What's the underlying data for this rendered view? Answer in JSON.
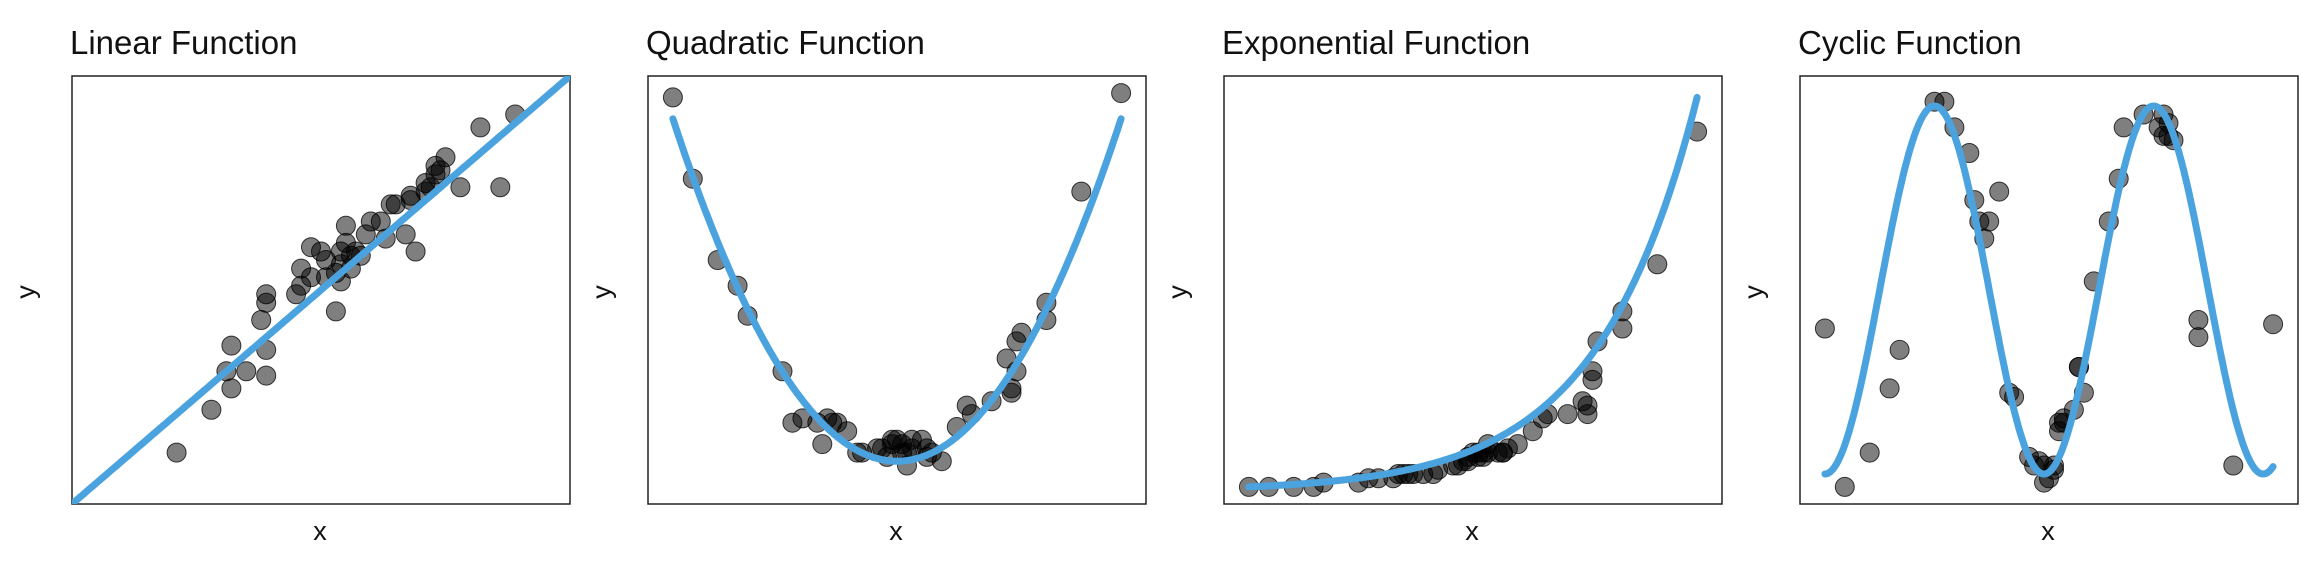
{
  "chart_data": [
    {
      "type": "scatter",
      "title": "Linear Function",
      "xlabel": "x",
      "ylabel": "y",
      "xlim": [
        0,
        1
      ],
      "ylim": [
        0,
        1
      ],
      "grid": false,
      "ticks": false,
      "colors": {
        "points": "#000000",
        "fit": "#4aa3df"
      },
      "points": {
        "x": [
          0.21,
          0.28,
          0.32,
          0.31,
          0.35,
          0.32,
          0.39,
          0.39,
          0.38,
          0.39,
          0.39,
          0.45,
          0.46,
          0.46,
          0.48,
          0.48,
          0.5,
          0.51,
          0.51,
          0.53,
          0.53,
          0.54,
          0.54,
          0.54,
          0.55,
          0.55,
          0.56,
          0.56,
          0.57,
          0.58,
          0.59,
          0.6,
          0.62,
          0.63,
          0.64,
          0.65,
          0.67,
          0.68,
          0.68,
          0.69,
          0.71,
          0.71,
          0.72,
          0.73,
          0.73,
          0.74,
          0.75,
          0.78,
          0.82,
          0.86,
          0.89
        ],
        "y": [
          0.12,
          0.22,
          0.27,
          0.31,
          0.31,
          0.37,
          0.3,
          0.36,
          0.43,
          0.47,
          0.49,
          0.49,
          0.51,
          0.55,
          0.53,
          0.6,
          0.59,
          0.57,
          0.53,
          0.54,
          0.45,
          0.52,
          0.56,
          0.59,
          0.61,
          0.65,
          0.55,
          0.58,
          0.59,
          0.58,
          0.63,
          0.66,
          0.66,
          0.62,
          0.7,
          0.7,
          0.63,
          0.71,
          0.72,
          0.59,
          0.73,
          0.75,
          0.74,
          0.77,
          0.79,
          0.78,
          0.81,
          0.74,
          0.88,
          0.74,
          0.91
        ]
      },
      "fit": {
        "x0": 0,
        "x1": 1,
        "y0": 0,
        "y1": 1
      }
    },
    {
      "type": "scatter",
      "title": "Quadratic Function",
      "xlabel": "x",
      "ylabel": "y",
      "xlim": [
        0,
        1
      ],
      "ylim": [
        0,
        1
      ],
      "grid": false,
      "ticks": false,
      "colors": {
        "points": "#000000",
        "fit": "#4aa3df"
      },
      "points": {
        "x": [
          0.05,
          0.09,
          0.14,
          0.18,
          0.2,
          0.27,
          0.29,
          0.31,
          0.34,
          0.35,
          0.36,
          0.37,
          0.38,
          0.4,
          0.42,
          0.43,
          0.46,
          0.47,
          0.48,
          0.49,
          0.49,
          0.5,
          0.51,
          0.51,
          0.52,
          0.52,
          0.53,
          0.53,
          0.55,
          0.56,
          0.56,
          0.57,
          0.59,
          0.62,
          0.64,
          0.65,
          0.69,
          0.72,
          0.73,
          0.73,
          0.74,
          0.74,
          0.75,
          0.8,
          0.8,
          0.87,
          0.95
        ],
        "y": [
          0.95,
          0.76,
          0.57,
          0.51,
          0.44,
          0.31,
          0.19,
          0.2,
          0.19,
          0.14,
          0.2,
          0.19,
          0.19,
          0.17,
          0.12,
          0.12,
          0.13,
          0.13,
          0.11,
          0.15,
          0.14,
          0.15,
          0.14,
          0.12,
          0.09,
          0.12,
          0.13,
          0.15,
          0.15,
          0.13,
          0.11,
          0.12,
          0.1,
          0.18,
          0.23,
          0.21,
          0.24,
          0.34,
          0.26,
          0.27,
          0.31,
          0.38,
          0.4,
          0.47,
          0.43,
          0.73,
          0.96
        ]
      },
      "fit": {
        "curve": "parabola",
        "vertex_x": 0.5,
        "vertex_y": 0.1,
        "edge_y": 0.9
      }
    },
    {
      "type": "scatter",
      "title": "Exponential Function",
      "xlabel": "x",
      "ylabel": "y",
      "xlim": [
        0,
        1
      ],
      "ylim": [
        0,
        1
      ],
      "grid": false,
      "ticks": false,
      "colors": {
        "points": "#000000",
        "fit": "#4aa3df"
      },
      "points": {
        "x": [
          0.05,
          0.09,
          0.14,
          0.18,
          0.2,
          0.27,
          0.29,
          0.31,
          0.34,
          0.35,
          0.36,
          0.37,
          0.38,
          0.4,
          0.42,
          0.43,
          0.46,
          0.47,
          0.48,
          0.49,
          0.49,
          0.5,
          0.51,
          0.51,
          0.52,
          0.52,
          0.53,
          0.53,
          0.55,
          0.56,
          0.56,
          0.57,
          0.59,
          0.62,
          0.64,
          0.65,
          0.69,
          0.72,
          0.73,
          0.73,
          0.74,
          0.74,
          0.75,
          0.8,
          0.8,
          0.87,
          0.95
        ],
        "y": [
          0.04,
          0.04,
          0.04,
          0.04,
          0.05,
          0.05,
          0.06,
          0.06,
          0.06,
          0.07,
          0.07,
          0.07,
          0.07,
          0.07,
          0.07,
          0.08,
          0.09,
          0.09,
          0.1,
          0.1,
          0.11,
          0.12,
          0.11,
          0.12,
          0.12,
          0.11,
          0.12,
          0.14,
          0.12,
          0.12,
          0.12,
          0.13,
          0.14,
          0.17,
          0.2,
          0.21,
          0.21,
          0.24,
          0.21,
          0.23,
          0.29,
          0.31,
          0.38,
          0.41,
          0.45,
          0.56,
          0.87
        ]
      },
      "fit": {
        "curve": "exponential",
        "x0": 0.05,
        "x1": 0.95,
        "y0": 0.04,
        "y1": 0.95
      }
    },
    {
      "type": "scatter",
      "title": "Cyclic Function",
      "xlabel": "x",
      "ylabel": "y",
      "xlim": [
        0,
        1
      ],
      "ylim": [
        0,
        1
      ],
      "grid": false,
      "ticks": false,
      "colors": {
        "points": "#000000",
        "fit": "#4aa3df"
      },
      "points": {
        "x": [
          0.05,
          0.09,
          0.14,
          0.18,
          0.2,
          0.27,
          0.29,
          0.31,
          0.34,
          0.35,
          0.36,
          0.37,
          0.38,
          0.4,
          0.42,
          0.43,
          0.46,
          0.47,
          0.48,
          0.49,
          0.49,
          0.5,
          0.51,
          0.51,
          0.52,
          0.52,
          0.53,
          0.53,
          0.55,
          0.56,
          0.56,
          0.57,
          0.59,
          0.62,
          0.64,
          0.65,
          0.69,
          0.72,
          0.73,
          0.73,
          0.74,
          0.74,
          0.75,
          0.8,
          0.8,
          0.87,
          0.95
        ],
        "y": [
          0.41,
          0.04,
          0.12,
          0.27,
          0.36,
          0.94,
          0.94,
          0.88,
          0.82,
          0.71,
          0.66,
          0.62,
          0.66,
          0.73,
          0.26,
          0.25,
          0.11,
          0.09,
          0.1,
          0.09,
          0.05,
          0.06,
          0.09,
          0.08,
          0.19,
          0.17,
          0.19,
          0.2,
          0.22,
          0.32,
          0.32,
          0.26,
          0.52,
          0.66,
          0.76,
          0.88,
          0.91,
          0.88,
          0.91,
          0.86,
          0.89,
          0.86,
          0.85,
          0.43,
          0.39,
          0.09,
          0.42
        ]
      },
      "fit": {
        "curve": "sine",
        "x0": 0.05,
        "x1": 0.95,
        "center": 0.5,
        "amplitude": 0.43,
        "period": 0.44,
        "phase_x": 0.27
      }
    }
  ]
}
